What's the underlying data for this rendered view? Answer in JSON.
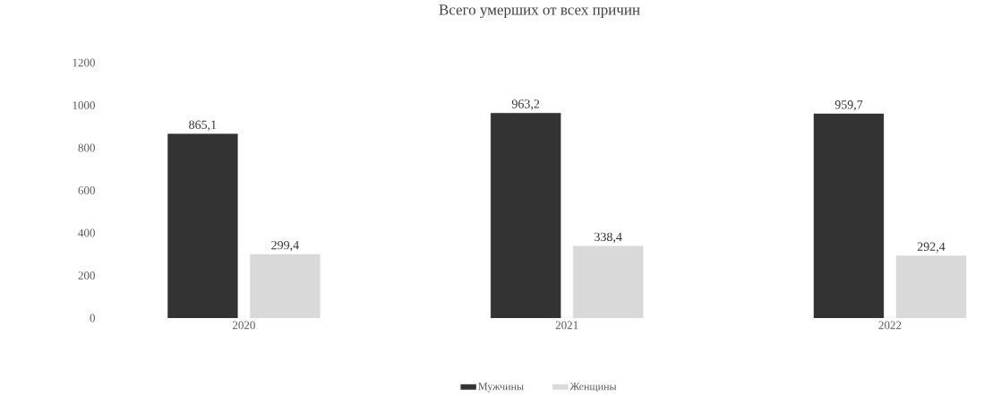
{
  "chart_data": {
    "type": "bar",
    "title": "Всего умерших от всех причин",
    "categories": [
      "2020",
      "2021",
      "2022"
    ],
    "series": [
      {
        "name": "Мужчины",
        "color": "#333333",
        "values": [
          865.1,
          963.2,
          959.7
        ],
        "value_labels": [
          "865,1",
          "963,2",
          "959,7"
        ]
      },
      {
        "name": "Женщины",
        "color": "#d9d9d9",
        "values": [
          299.4,
          338.4,
          292.4
        ],
        "value_labels": [
          "299,4",
          "338,4",
          "292,4"
        ]
      }
    ],
    "ylim": [
      0,
      1200
    ],
    "yticks": [
      0,
      200,
      400,
      600,
      800,
      1000,
      1200
    ],
    "grid": false,
    "legend": "bottom"
  }
}
